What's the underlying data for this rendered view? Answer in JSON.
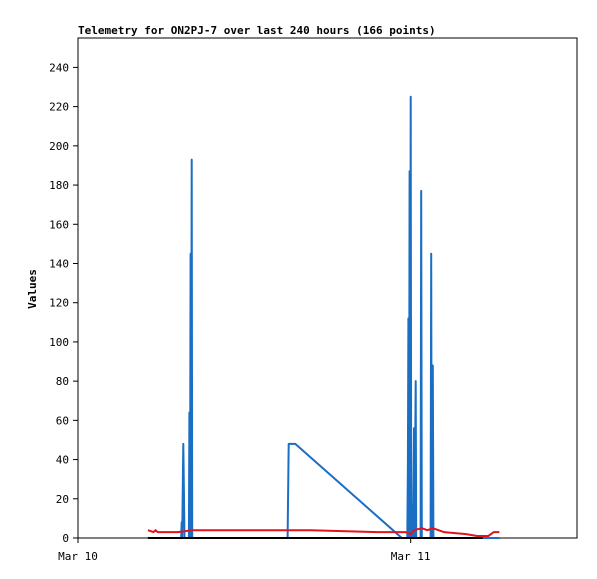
{
  "chart_data": {
    "type": "line",
    "title": "Telemetry for ON2PJ-7 over last 240 hours (166 points)",
    "xlabel": "",
    "ylabel": "Values",
    "xlim_hours": [
      0,
      45
    ],
    "ylim": [
      0,
      255
    ],
    "y_ticks": [
      0,
      20,
      40,
      60,
      80,
      100,
      120,
      140,
      160,
      180,
      200,
      220,
      240
    ],
    "x_ticks": [
      {
        "label": "Mar 10",
        "hour": 0
      },
      {
        "label": "Mar 11",
        "hour": 30
      }
    ],
    "grid": false,
    "legend": "none",
    "series": [
      {
        "color": "#1a6fc4",
        "points": [
          [
            6.3,
            0
          ],
          [
            9.3,
            0
          ],
          [
            9.35,
            8
          ],
          [
            9.4,
            0
          ],
          [
            9.5,
            48
          ],
          [
            9.6,
            0
          ],
          [
            10.0,
            0
          ],
          [
            10.05,
            64
          ],
          [
            10.1,
            0
          ],
          [
            10.15,
            145
          ],
          [
            10.2,
            0
          ],
          [
            10.25,
            193
          ],
          [
            10.3,
            0
          ],
          [
            18.9,
            0
          ],
          [
            19.0,
            48
          ],
          [
            19.6,
            48
          ],
          [
            29.2,
            0
          ],
          [
            29.7,
            0
          ],
          [
            29.75,
            38
          ],
          [
            29.8,
            112
          ],
          [
            29.85,
            0
          ],
          [
            29.9,
            187
          ],
          [
            29.95,
            0
          ],
          [
            30.0,
            225
          ],
          [
            30.05,
            0
          ],
          [
            30.15,
            17
          ],
          [
            30.2,
            0
          ],
          [
            30.3,
            56
          ],
          [
            30.35,
            0
          ],
          [
            30.45,
            80
          ],
          [
            30.5,
            0
          ],
          [
            30.9,
            0
          ],
          [
            30.95,
            177
          ],
          [
            31.0,
            0
          ],
          [
            31.8,
            0
          ],
          [
            31.85,
            145
          ],
          [
            31.9,
            0
          ],
          [
            32.0,
            88
          ],
          [
            32.05,
            0
          ],
          [
            38.0,
            0
          ]
        ]
      },
      {
        "color": "#e0141c",
        "points": [
          [
            6.3,
            4
          ],
          [
            6.8,
            3
          ],
          [
            7.0,
            4
          ],
          [
            7.2,
            3
          ],
          [
            9.0,
            3
          ],
          [
            10.3,
            4
          ],
          [
            15.0,
            4
          ],
          [
            21.0,
            4
          ],
          [
            27.0,
            3
          ],
          [
            29.5,
            3
          ],
          [
            30.0,
            2
          ],
          [
            30.3,
            4
          ],
          [
            31.0,
            5
          ],
          [
            31.5,
            4
          ],
          [
            32.0,
            5
          ],
          [
            33.0,
            3
          ],
          [
            35.0,
            2
          ],
          [
            36.0,
            1
          ],
          [
            37.0,
            1
          ],
          [
            37.5,
            3
          ],
          [
            38.0,
            3
          ]
        ]
      },
      {
        "color": "#000000",
        "points": [
          [
            6.3,
            0
          ],
          [
            36.5,
            0
          ]
        ]
      }
    ]
  }
}
